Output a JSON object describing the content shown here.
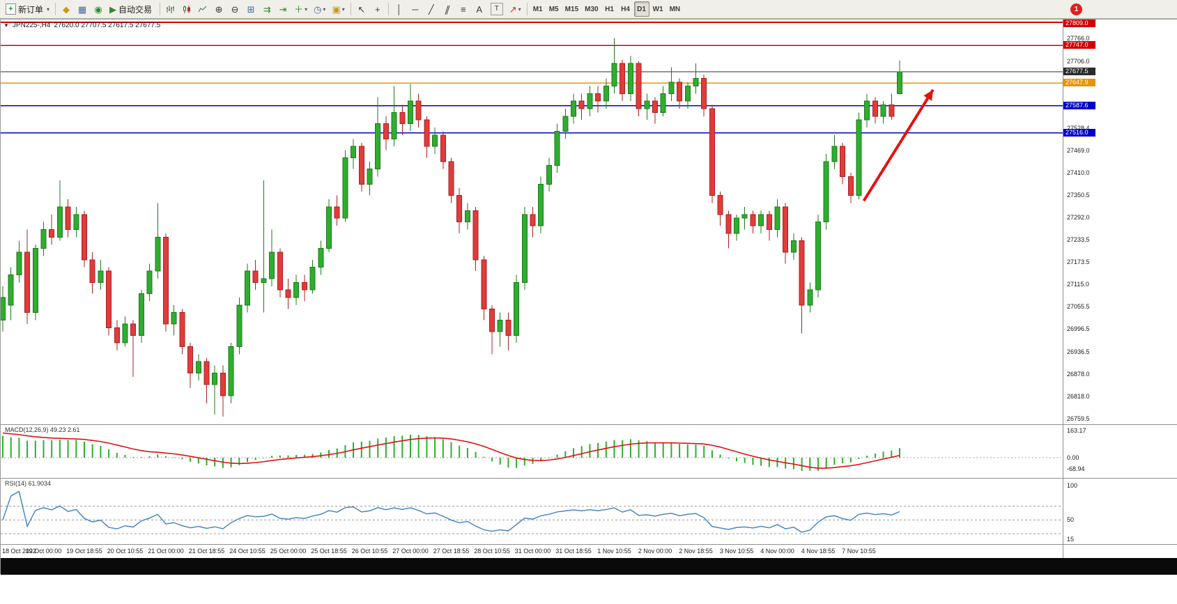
{
  "toolbar": {
    "new_order_label": "新订单",
    "autotrading_label": "自动交易",
    "timeframes": [
      {
        "label": "M1",
        "active": false
      },
      {
        "label": "M5",
        "active": false
      },
      {
        "label": "M15",
        "active": false
      },
      {
        "label": "M30",
        "active": false
      },
      {
        "label": "H1",
        "active": false
      },
      {
        "label": "H4",
        "active": false
      },
      {
        "label": "D1",
        "active": true
      },
      {
        "label": "W1",
        "active": false
      },
      {
        "label": "MN",
        "active": false
      }
    ],
    "badge_count": "1"
  },
  "icons": {
    "plus": "+",
    "caret": "▾",
    "market_watch": "◆",
    "data_window": "▦",
    "navigator": "◉",
    "play": "▶",
    "zoom_in": "⊕",
    "zoom_out": "⊖",
    "tile": "⊞",
    "auto_scroll": "⇉",
    "chart_shift": "⇥",
    "indicators": "＋",
    "clock": "◷",
    "template": "▣",
    "cursor": "↖",
    "crosshair": "+",
    "vline": "│",
    "hline": "─",
    "trendline": "╱",
    "channel": "∥",
    "fibo": "≡",
    "text_a": "A",
    "text_label": "T",
    "arrow_tool": "↗",
    "window_caret": "▼"
  },
  "chart": {
    "symbol_title": "JPN225-,H4",
    "ohlc_text": "27620.0 27707.5 27617.5 27677.5"
  },
  "macd": {
    "label": "MACD(12,26,9) 49.23 2.61",
    "scale": [
      "163.17",
      "0.00",
      "-68.94"
    ]
  },
  "rsi": {
    "label": "RSI(14) 61.9034",
    "scale": [
      "100",
      "50",
      "15"
    ]
  },
  "chart_data": {
    "type": "candlestick",
    "symbol": "JPN225-",
    "timeframe": "H4",
    "title": "JPN225-,H4 27620.0 27707.5 27617.5 27677.5",
    "current_bar": {
      "open": 27620.0,
      "high": 27707.5,
      "low": 27617.5,
      "close": 27677.5
    },
    "y_range": [
      26759.5,
      27809.0
    ],
    "colors": {
      "up": "#2eae2e",
      "up_border": "#1d7a1d",
      "down": "#e23b3b",
      "down_border": "#a82020",
      "macd_hist": "#2eae2e",
      "macd_signal": "#e01010",
      "rsi_line": "#4a87c7",
      "arrow": "#e81010",
      "line_red": "#d40000",
      "line_black": "#2b2b2b",
      "line_orange": "#e8940a",
      "line_blue": "#0000cd"
    },
    "lines": [
      {
        "price": 27809.0,
        "label": "27809.0",
        "color": "#d40000",
        "width": 2
      },
      {
        "price": 27747.0,
        "label": "27747.0",
        "color": "#d40000",
        "width": 1.5
      },
      {
        "price": 27677.5,
        "label": "27677.5",
        "color": "#2b2b2b",
        "width": 1.3
      },
      {
        "price": 27647.9,
        "label": "27647.9",
        "color": "#e8940a",
        "width": 1.5
      },
      {
        "price": 27587.6,
        "label": "27587.6",
        "color": "#0000cd",
        "width": 1.3
      },
      {
        "price": 27516.0,
        "label": "27516.0",
        "color": "#0000cd",
        "width": 1.3
      }
    ],
    "axis_ticks": [
      27766.0,
      27706.0,
      27528.4,
      27469.0,
      27410.0,
      27350.5,
      27292.0,
      27233.5,
      27173.5,
      27115.0,
      27055.5,
      26996.5,
      26936.5,
      26878.0,
      26818.0,
      26759.5
    ],
    "arrow": {
      "from": {
        "bar": 105.6,
        "price": 27336
      },
      "to": {
        "bar": 114.1,
        "price": 27630
      }
    },
    "x_axis_labels": [
      "18 Oct 2022",
      "19 Oct 00:00",
      "19 Oct 18:55",
      "20 Oct 10:55",
      "21 Oct 00:00",
      "21 Oct 18:55",
      "24 Oct 10:55",
      "25 Oct 00:00",
      "25 Oct 18:55",
      "26 Oct 10:55",
      "27 Oct 00:00",
      "27 Oct 18:55",
      "28 Oct 10:55",
      "31 Oct 00:00",
      "31 Oct 18:55",
      "1 Nov 10:55",
      "2 Nov 00:00",
      "2 Nov 18:55",
      "3 Nov 10:55",
      "4 Nov 00:00",
      "4 Nov 18:55",
      "7 Nov 10:55"
    ],
    "bars_per_label": 5,
    "candles": [
      [
        27020,
        27110,
        26990,
        27080
      ],
      [
        27060,
        27160,
        27020,
        27140
      ],
      [
        27140,
        27230,
        27120,
        27200
      ],
      [
        27200,
        27260,
        27010,
        27040
      ],
      [
        27040,
        27220,
        27020,
        27210
      ],
      [
        27210,
        27280,
        27190,
        27260
      ],
      [
        27260,
        27300,
        27220,
        27240
      ],
      [
        27240,
        27390,
        27230,
        27320
      ],
      [
        27320,
        27340,
        27240,
        27260
      ],
      [
        27260,
        27320,
        27240,
        27300
      ],
      [
        27300,
        27310,
        27160,
        27180
      ],
      [
        27180,
        27200,
        27090,
        27120
      ],
      [
        27120,
        27180,
        27100,
        27150
      ],
      [
        27150,
        27160,
        26980,
        27000
      ],
      [
        27000,
        27020,
        26940,
        26960
      ],
      [
        26960,
        27030,
        26950,
        27010
      ],
      [
        27010,
        27020,
        26870,
        26980
      ],
      [
        26980,
        27100,
        26960,
        27090
      ],
      [
        27090,
        27170,
        27070,
        27150
      ],
      [
        27150,
        27330,
        27130,
        27240
      ],
      [
        27240,
        27250,
        26990,
        27010
      ],
      [
        27010,
        27060,
        26980,
        27040
      ],
      [
        27040,
        27050,
        26930,
        26950
      ],
      [
        26950,
        26960,
        26840,
        26880
      ],
      [
        26880,
        26930,
        26860,
        26910
      ],
      [
        26910,
        26920,
        26800,
        26850
      ],
      [
        26850,
        26900,
        26770,
        26880
      ],
      [
        26880,
        26900,
        26765,
        26820
      ],
      [
        26820,
        26960,
        26800,
        26950
      ],
      [
        26950,
        27080,
        26930,
        27060
      ],
      [
        27060,
        27170,
        27040,
        27150
      ],
      [
        27150,
        27180,
        27100,
        27120
      ],
      [
        27120,
        27390,
        27040,
        27130
      ],
      [
        27130,
        27260,
        27110,
        27200
      ],
      [
        27200,
        27210,
        27080,
        27100
      ],
      [
        27100,
        27130,
        27050,
        27080
      ],
      [
        27080,
        27140,
        27060,
        27120
      ],
      [
        27120,
        27140,
        27070,
        27100
      ],
      [
        27100,
        27180,
        27090,
        27160
      ],
      [
        27160,
        27230,
        27140,
        27210
      ],
      [
        27210,
        27340,
        27200,
        27320
      ],
      [
        27320,
        27350,
        27270,
        27290
      ],
      [
        27290,
        27470,
        27280,
        27450
      ],
      [
        27450,
        27500,
        27420,
        27480
      ],
      [
        27480,
        27490,
        27360,
        27380
      ],
      [
        27380,
        27440,
        27350,
        27420
      ],
      [
        27420,
        27610,
        27400,
        27540
      ],
      [
        27540,
        27560,
        27470,
        27500
      ],
      [
        27500,
        27640,
        27480,
        27570
      ],
      [
        27570,
        27590,
        27510,
        27540
      ],
      [
        27540,
        27645,
        27520,
        27600
      ],
      [
        27600,
        27620,
        27530,
        27550
      ],
      [
        27550,
        27560,
        27450,
        27480
      ],
      [
        27480,
        27530,
        27460,
        27510
      ],
      [
        27510,
        27520,
        27420,
        27440
      ],
      [
        27440,
        27450,
        27330,
        27350
      ],
      [
        27350,
        27370,
        27250,
        27280
      ],
      [
        27280,
        27330,
        27260,
        27310
      ],
      [
        27310,
        27320,
        27150,
        27180
      ],
      [
        27180,
        27190,
        27020,
        27050
      ],
      [
        27050,
        27060,
        26930,
        26990
      ],
      [
        26990,
        27040,
        26950,
        27020
      ],
      [
        27020,
        27040,
        26940,
        26980
      ],
      [
        26980,
        27140,
        26960,
        27120
      ],
      [
        27120,
        27320,
        27100,
        27300
      ],
      [
        27300,
        27320,
        27240,
        27270
      ],
      [
        27270,
        27400,
        27250,
        27380
      ],
      [
        27380,
        27450,
        27360,
        27430
      ],
      [
        27430,
        27540,
        27410,
        27520
      ],
      [
        27520,
        27580,
        27500,
        27560
      ],
      [
        27560,
        27620,
        27540,
        27600
      ],
      [
        27600,
        27620,
        27550,
        27580
      ],
      [
        27580,
        27640,
        27560,
        27620
      ],
      [
        27620,
        27640,
        27570,
        27600
      ],
      [
        27600,
        27660,
        27580,
        27640
      ],
      [
        27640,
        27766,
        27620,
        27700
      ],
      [
        27700,
        27710,
        27600,
        27620
      ],
      [
        27620,
        27720,
        27600,
        27700
      ],
      [
        27700,
        27705,
        27560,
        27580
      ],
      [
        27580,
        27620,
        27550,
        27600
      ],
      [
        27600,
        27610,
        27540,
        27570
      ],
      [
        27570,
        27640,
        27560,
        27620
      ],
      [
        27620,
        27690,
        27600,
        27650
      ],
      [
        27650,
        27660,
        27580,
        27600
      ],
      [
        27600,
        27650,
        27580,
        27640
      ],
      [
        27640,
        27700,
        27620,
        27660
      ],
      [
        27660,
        27670,
        27560,
        27580
      ],
      [
        27580,
        27590,
        27330,
        27350
      ],
      [
        27350,
        27360,
        27270,
        27300
      ],
      [
        27300,
        27310,
        27210,
        27250
      ],
      [
        27250,
        27300,
        27230,
        27290
      ],
      [
        27290,
        27320,
        27260,
        27300
      ],
      [
        27300,
        27310,
        27250,
        27270
      ],
      [
        27270,
        27310,
        27250,
        27300
      ],
      [
        27300,
        27310,
        27230,
        27260
      ],
      [
        27260,
        27340,
        27240,
        27320
      ],
      [
        27320,
        27330,
        27170,
        27200
      ],
      [
        27200,
        27250,
        27180,
        27230
      ],
      [
        27230,
        27240,
        26985,
        27060
      ],
      [
        27060,
        27120,
        27040,
        27100
      ],
      [
        27100,
        27300,
        27080,
        27280
      ],
      [
        27280,
        27460,
        27260,
        27440
      ],
      [
        27440,
        27510,
        27420,
        27480
      ],
      [
        27480,
        27490,
        27380,
        27400
      ],
      [
        27400,
        27410,
        27330,
        27350
      ],
      [
        27350,
        27570,
        27340,
        27550
      ],
      [
        27550,
        27620,
        27530,
        27600
      ],
      [
        27600,
        27610,
        27540,
        27560
      ],
      [
        27560,
        27600,
        27540,
        27590
      ],
      [
        27590,
        27620,
        27550,
        27560
      ],
      [
        27620,
        27707.5,
        27617.5,
        27677.5
      ]
    ]
  }
}
